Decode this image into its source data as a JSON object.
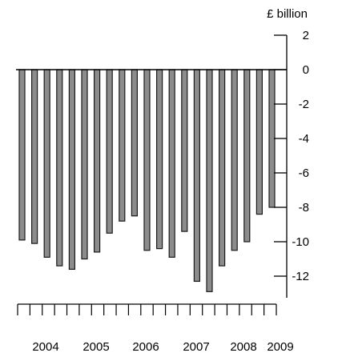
{
  "chart_data": {
    "type": "bar",
    "unit_label": "£ billion",
    "ylim": [
      -14,
      2
    ],
    "yticks": [
      2,
      0,
      -2,
      -4,
      -6,
      -8,
      -10,
      -12
    ],
    "ytick_labels": [
      "2",
      "0",
      "-2",
      "-4",
      "-6",
      "-8",
      "-10",
      "-12"
    ],
    "year_labels": [
      "2004",
      "2005",
      "2006",
      "2007",
      "2008",
      "2009"
    ],
    "x_categories": [
      "2004 Q1",
      "2004 Q2",
      "2004 Q3",
      "2004 Q4",
      "2005 Q1",
      "2005 Q2",
      "2005 Q3",
      "2005 Q4",
      "2006 Q1",
      "2006 Q2",
      "2006 Q3",
      "2006 Q4",
      "2007 Q1",
      "2007 Q2",
      "2007 Q3",
      "2007 Q4",
      "2008 Q1",
      "2008 Q2",
      "2008 Q3",
      "2008 Q4",
      "2009 Q1"
    ],
    "values": [
      -9.9,
      -10.1,
      -10.9,
      -11.4,
      -11.6,
      -11.0,
      -10.6,
      -9.5,
      -8.8,
      -8.5,
      -10.5,
      -10.4,
      -10.9,
      -9.4,
      -12.3,
      -12.9,
      -11.4,
      -10.5,
      -10.0,
      -8.4,
      -8.0
    ],
    "bar_color": "#8c8c8c",
    "bar_edge_color": "#1a1a1a",
    "grid": false
  }
}
